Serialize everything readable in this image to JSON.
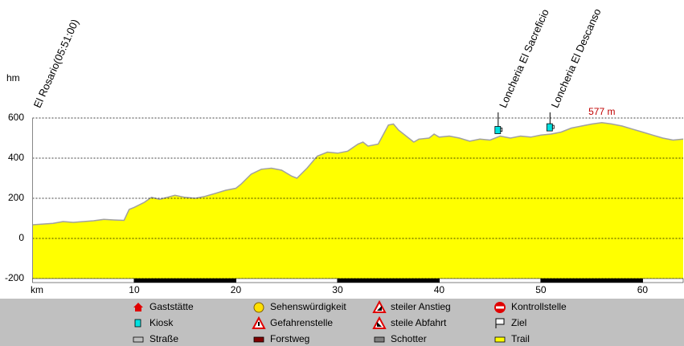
{
  "chart_data": {
    "type": "area",
    "y_label": "hm",
    "x_label": "km",
    "color": "#ffff00",
    "line_color": "#a0a0a0",
    "grid": true,
    "xlim": [
      0,
      64
    ],
    "ylim": [
      -200,
      600
    ],
    "xticks": [
      10,
      20,
      30,
      40,
      50,
      60
    ],
    "yticks": [
      -200,
      0,
      200,
      400,
      600
    ],
    "x": [
      0,
      2,
      3,
      4,
      6,
      7,
      8,
      9,
      9.5,
      10,
      11,
      11.7,
      12.5,
      14,
      15,
      16,
      17,
      18,
      19,
      20,
      20.5,
      21.5,
      22.5,
      23.5,
      24.5,
      25.5,
      26,
      27,
      28,
      29,
      30,
      31,
      32,
      32.5,
      33,
      34,
      35,
      35.5,
      36,
      37,
      37.5,
      38,
      39,
      39.5,
      40,
      41,
      42,
      43,
      44,
      45,
      46,
      47,
      48,
      49,
      50,
      51,
      52,
      53,
      54,
      55,
      56,
      57,
      58,
      59,
      60,
      61,
      62,
      63,
      64
    ],
    "values": [
      68,
      75,
      84,
      80,
      88,
      95,
      92,
      90,
      145,
      155,
      180,
      205,
      195,
      215,
      205,
      200,
      210,
      225,
      240,
      250,
      270,
      320,
      345,
      350,
      340,
      310,
      300,
      350,
      410,
      430,
      425,
      435,
      470,
      480,
      460,
      470,
      565,
      570,
      540,
      500,
      480,
      495,
      500,
      520,
      505,
      510,
      500,
      485,
      495,
      490,
      510,
      500,
      510,
      505,
      515,
      520,
      530,
      550,
      560,
      570,
      577,
      570,
      560,
      545,
      530,
      515,
      500,
      490,
      495
    ],
    "annotations": [
      {
        "text": "El Rosario(05:51:00)",
        "x": 0
      },
      {
        "text": "Loncheria El Sacreficio",
        "x": 45.8
      },
      {
        "text": "Loncheria El Descanso",
        "x": 50.9
      }
    ],
    "peak": {
      "text": "577 m",
      "x": 56,
      "y": 577
    }
  },
  "legend": {
    "items": [
      "Gaststätte",
      "Sehenswürdigkeit",
      "steiler Anstieg",
      "Kontrollstelle",
      "Kiosk",
      "Gefahrenstelle",
      "steile Abfahrt",
      "Ziel",
      "Straße",
      "Forstweg",
      "Schotter",
      "Trail"
    ]
  }
}
